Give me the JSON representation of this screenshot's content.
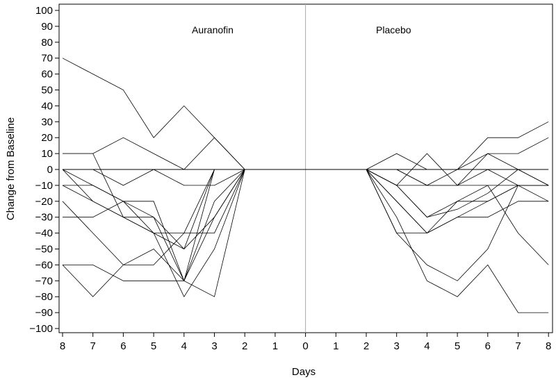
{
  "chart_data": {
    "type": "line",
    "title": "",
    "xlabel": "Days",
    "ylabel": "Change from Baseline",
    "ylim": [
      -100,
      100
    ],
    "yticks": [
      100,
      90,
      80,
      70,
      60,
      50,
      40,
      30,
      20,
      10,
      0,
      -10,
      -20,
      -30,
      -40,
      -50,
      -60,
      -70,
      -80,
      -90,
      -100
    ],
    "x_tick_labels": [
      "8",
      "7",
      "6",
      "5",
      "4",
      "3",
      "2",
      "1",
      "0",
      "1",
      "2",
      "3",
      "4",
      "5",
      "6",
      "7",
      "8"
    ],
    "grid": false,
    "reference_lines": {
      "horizontal_y": 0,
      "vertical_at_day": "0"
    },
    "panels": [
      {
        "label": "Auranofin",
        "x_days": [
          8,
          7,
          6,
          5,
          4,
          3,
          2
        ],
        "series": [
          {
            "values": [
              70,
              60,
              50,
              20,
              40,
              20,
              0
            ]
          },
          {
            "values": [
              10,
              10,
              -30,
              -40,
              -50,
              0,
              0
            ]
          },
          {
            "values": [
              10,
              10,
              20,
              10,
              0,
              20,
              0
            ]
          },
          {
            "values": [
              0,
              -20,
              -30,
              -30,
              -70,
              -20,
              0
            ]
          },
          {
            "values": [
              0,
              0,
              -10,
              0,
              -10,
              -10,
              0
            ]
          },
          {
            "values": [
              0,
              -10,
              -20,
              -30,
              -50,
              -30,
              0
            ]
          },
          {
            "values": [
              -10,
              -10,
              -20,
              -20,
              -70,
              -80,
              0
            ]
          },
          {
            "values": [
              -10,
              -20,
              -30,
              -40,
              -40,
              0,
              0
            ]
          },
          {
            "values": [
              -20,
              -40,
              -60,
              -60,
              -40,
              -40,
              0
            ]
          },
          {
            "values": [
              -30,
              -30,
              -20,
              -40,
              -80,
              -50,
              0
            ]
          },
          {
            "values": [
              -60,
              -60,
              -70,
              -70,
              -70,
              0,
              0
            ]
          },
          {
            "values": [
              -60,
              -80,
              -60,
              -50,
              -70,
              -30,
              0
            ]
          }
        ]
      },
      {
        "label": "Placebo",
        "x_days": [
          2,
          3,
          4,
          5,
          6,
          7,
          8
        ],
        "series": [
          {
            "values": [
              0,
              10,
              0,
              0,
              20,
              20,
              30
            ]
          },
          {
            "values": [
              0,
              0,
              -10,
              0,
              10,
              10,
              20
            ]
          },
          {
            "values": [
              0,
              -10,
              10,
              -10,
              10,
              0,
              -10
            ]
          },
          {
            "values": [
              0,
              0,
              -10,
              -10,
              0,
              -10,
              -10
            ]
          },
          {
            "values": [
              0,
              -10,
              -10,
              -10,
              -10,
              -40,
              -60
            ]
          },
          {
            "values": [
              0,
              -10,
              -30,
              -20,
              -20,
              -10,
              -10
            ]
          },
          {
            "values": [
              0,
              -20,
              -40,
              -20,
              -10,
              -10,
              -20
            ]
          },
          {
            "values": [
              0,
              -20,
              -40,
              -30,
              -30,
              -20,
              -20
            ]
          },
          {
            "values": [
              0,
              -40,
              -60,
              -70,
              -50,
              -10,
              -10
            ]
          },
          {
            "values": [
              0,
              -40,
              -40,
              -30,
              -20,
              -10,
              -10
            ]
          },
          {
            "values": [
              0,
              -30,
              -70,
              -80,
              -60,
              -90,
              -90
            ]
          },
          {
            "values": [
              0,
              -10,
              -30,
              -25,
              -15,
              0,
              -10
            ]
          }
        ]
      }
    ]
  }
}
